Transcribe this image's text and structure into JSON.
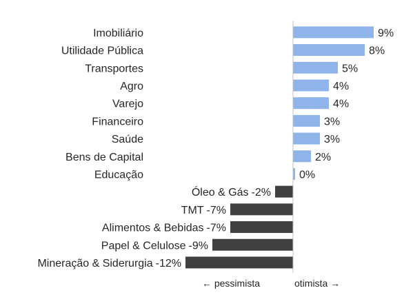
{
  "chart_data": {
    "type": "bar",
    "orientation": "horizontal",
    "categories": [
      "Imobiliário",
      "Utilidade Pública",
      "Transportes",
      "Agro",
      "Varejo",
      "Financeiro",
      "Saúde",
      "Bens de Capital",
      "Educação",
      "Óleo & Gás",
      "TMT",
      "Alimentos & Bebidas",
      "Papel & Celulose",
      "Mineração & Siderurgia"
    ],
    "values": [
      9,
      8,
      5,
      4,
      4,
      3,
      3,
      2,
      0,
      -2,
      -7,
      -7,
      -9,
      -12
    ],
    "value_labels": [
      "9%",
      "8%",
      "5%",
      "4%",
      "4%",
      "3%",
      "3%",
      "2%",
      "0%",
      "-2%",
      "-7%",
      "-7%",
      "-9%",
      "-12%"
    ],
    "unit": "%",
    "xlim": [
      -12.4,
      9
    ],
    "colors": {
      "positive": "#8fb4ea",
      "negative": "#404040",
      "axis": "#bfbfbf",
      "text": "#262626"
    },
    "direction_labels": {
      "negative": "← pessimista",
      "positive": "otimista →"
    },
    "grid": false
  }
}
